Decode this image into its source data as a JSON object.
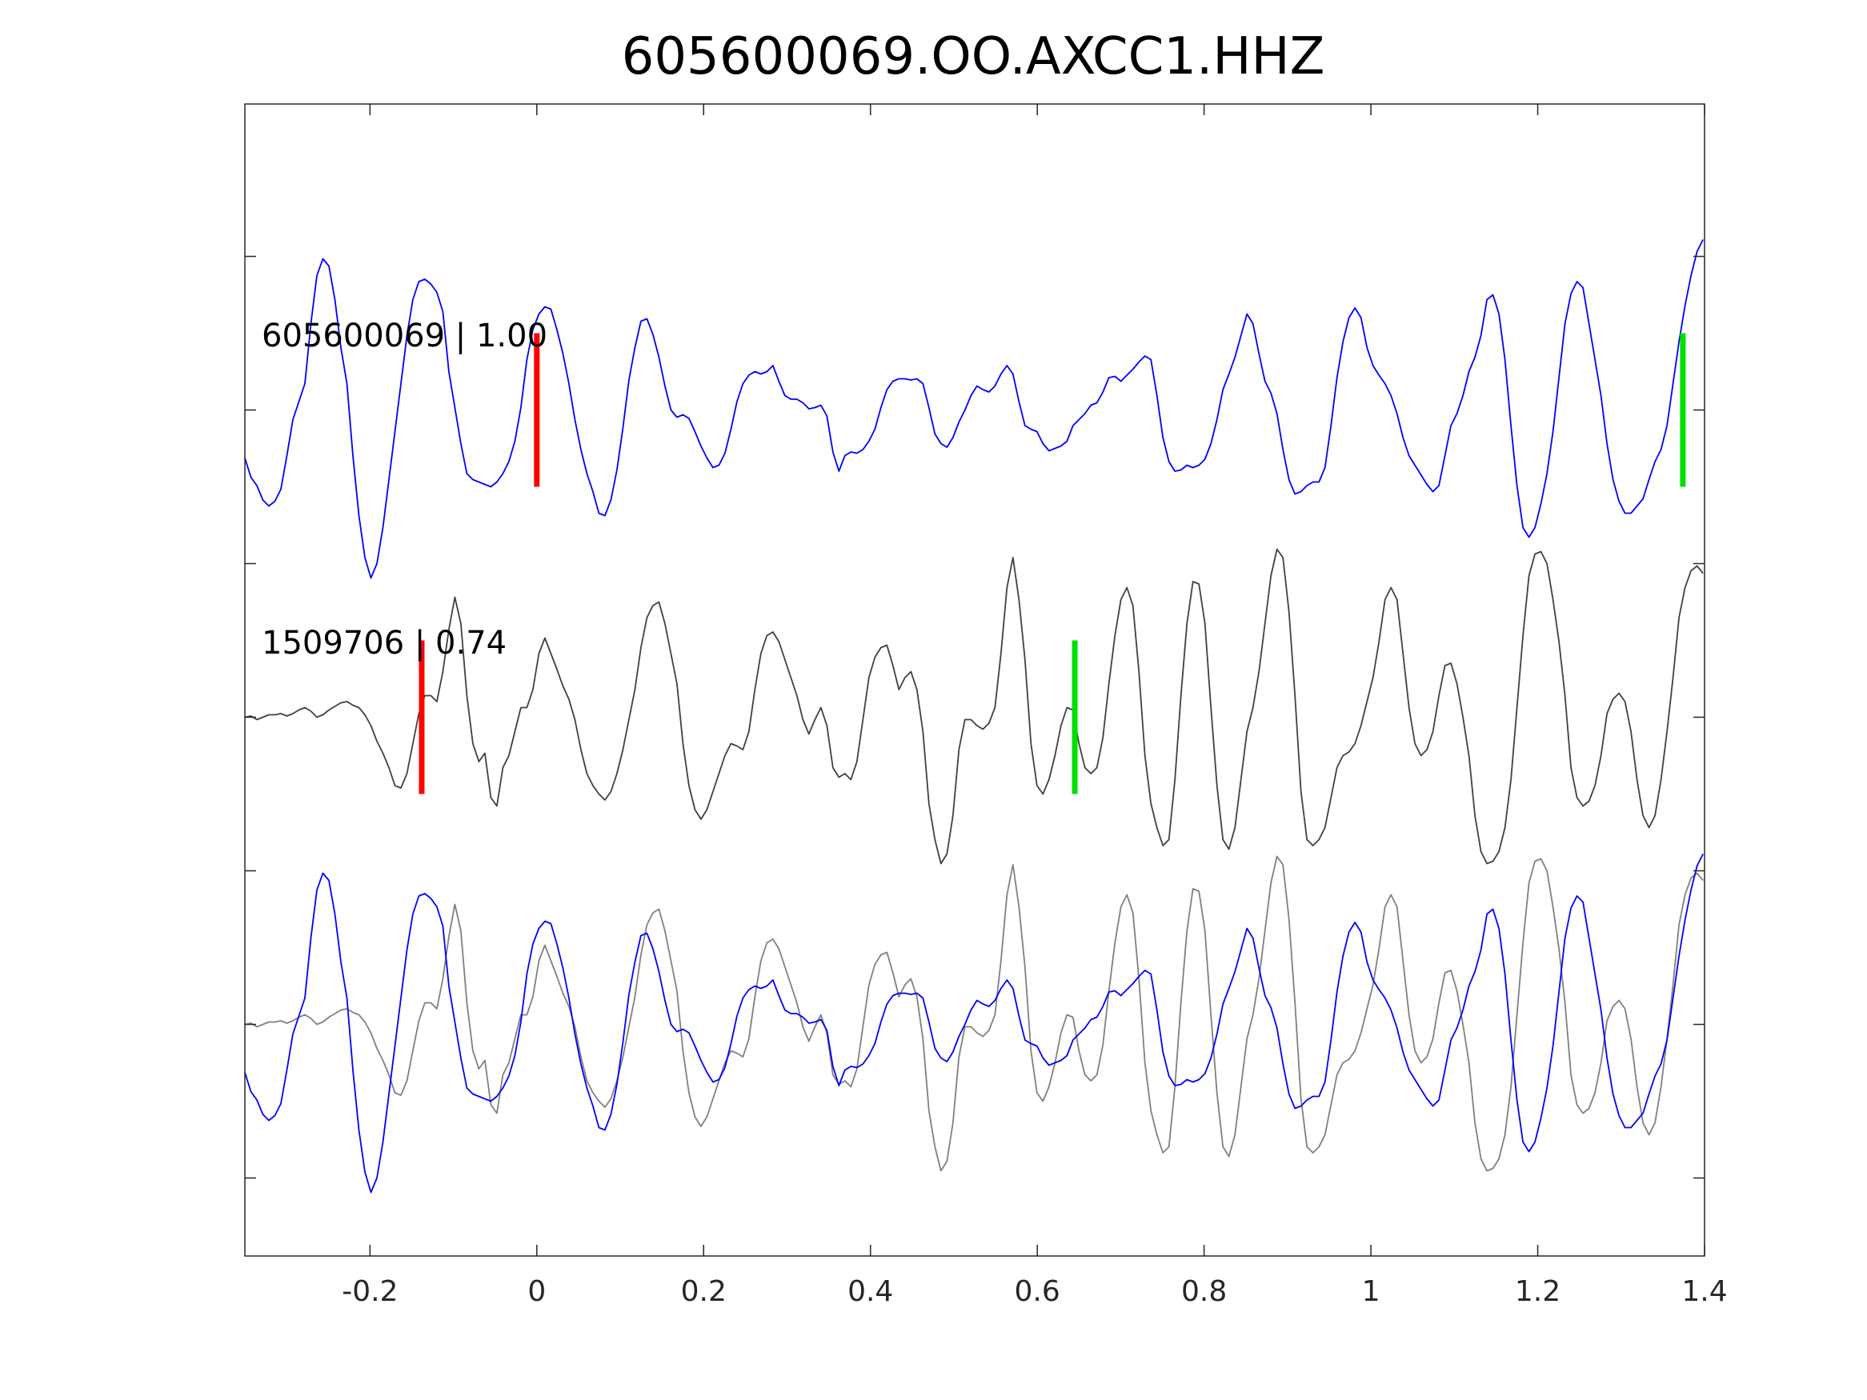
{
  "chart_data": {
    "type": "line",
    "title": "605600069.OO.AXCC1.HHZ",
    "xlabel": "",
    "ylabel": "",
    "xlim": [
      -0.35,
      1.4
    ],
    "ylim": [
      -705,
      255
    ],
    "xticks": [
      -0.2,
      0,
      0.2,
      0.4,
      0.6,
      0.8,
      1,
      1.2,
      1.4
    ],
    "xtick_labels": [
      "-0.2",
      "0",
      "0.2",
      "0.4",
      "0.6",
      "0.8",
      "1",
      "1.2",
      "1.4"
    ],
    "yticks": [
      128,
      0,
      -128,
      -256,
      -384,
      -512,
      -640
    ],
    "grid": false,
    "colors": {
      "blue": "#0000ff",
      "dark_gray": "#404040",
      "light_gray": "#808080",
      "red": "#ff0000",
      "green": "#00e000",
      "axis": "#262626"
    },
    "sampling": {
      "x_start": -0.35,
      "dt": 0.007194
    },
    "waveforms": {
      "605600069": [
        -40,
        -56,
        -63,
        -75,
        -80,
        -76,
        -66,
        -38,
        -8,
        7,
        22,
        72,
        112,
        126,
        120,
        92,
        52,
        22,
        -38,
        -88,
        -123,
        -140,
        -128,
        -98,
        -58,
        -18,
        22,
        62,
        92,
        107,
        109,
        105,
        98,
        82,
        32,
        2,
        -28,
        -53,
        -58,
        -60,
        -62,
        -64,
        -60,
        -53,
        -43,
        -26,
        2,
        42,
        67,
        80,
        86,
        84,
        67,
        47,
        22,
        -8,
        -33,
        -53,
        -68,
        -86,
        -88,
        -75,
        -50,
        -15,
        25,
        52,
        74,
        76,
        63,
        44,
        20,
        0,
        -6,
        -4,
        -7,
        -18,
        -30,
        -40,
        -48,
        -46,
        -36,
        -16,
        7,
        22,
        29,
        32,
        30,
        32,
        37,
        24,
        12,
        9,
        9,
        6,
        1,
        2,
        4,
        -5,
        -35,
        -51,
        -38,
        -35,
        -36,
        -33,
        -26,
        -16,
        2,
        17,
        24,
        26,
        26,
        25,
        26,
        22,
        2,
        -20,
        -28,
        -31,
        -23,
        -10,
        0,
        12,
        20,
        17,
        15,
        20,
        30,
        37,
        30,
        7,
        -13,
        -16,
        -18,
        -28,
        -34,
        -32,
        -30,
        -26,
        -13,
        -8,
        -3,
        4,
        6,
        15,
        27,
        28,
        24,
        29,
        34,
        40,
        45,
        42,
        12,
        -23,
        -43,
        -51,
        -50,
        -46,
        -48,
        -46,
        -41,
        -28,
        -8,
        17,
        30,
        44,
        62,
        80,
        72,
        47,
        24,
        14,
        -3,
        -33,
        -58,
        -70,
        -68,
        -63,
        -60,
        -60,
        -48,
        -13,
        27,
        57,
        77,
        85,
        77,
        52,
        37,
        29,
        22,
        12,
        -3,
        -23,
        -38,
        -46,
        -54,
        -62,
        -68,
        -63,
        -38,
        -13,
        -3,
        12,
        32,
        44,
        62,
        92,
        96,
        80,
        42,
        -13,
        -63,
        -98,
        -106,
        -98,
        -78,
        -53,
        -18,
        27,
        72,
        97,
        107,
        102,
        72,
        42,
        12,
        -28,
        -58,
        -76,
        -86,
        -86,
        -80,
        -74,
        -58,
        -43,
        -33,
        -13,
        22,
        57,
        87,
        112,
        132,
        142
      ],
      "1509706": [
        0,
        1,
        -2,
        0,
        2,
        2,
        3,
        1,
        3,
        6,
        8,
        5,
        0,
        2,
        6,
        9,
        12,
        13,
        10,
        8,
        2,
        -7,
        -20,
        -30,
        -42,
        -57,
        -59,
        -47,
        -22,
        3,
        18,
        18,
        13,
        38,
        73,
        100,
        78,
        18,
        -22,
        -37,
        -30,
        -67,
        -74,
        -42,
        -32,
        -12,
        8,
        8,
        23,
        53,
        66,
        53,
        40,
        26,
        15,
        -2,
        -27,
        -47,
        -57,
        -64,
        -69,
        -62,
        -47,
        -27,
        -2,
        23,
        58,
        83,
        93,
        96,
        78,
        53,
        28,
        -22,
        -57,
        -77,
        -85,
        -77,
        -62,
        -47,
        -32,
        -22,
        -24,
        -27,
        -12,
        23,
        53,
        68,
        71,
        63,
        48,
        33,
        18,
        -2,
        -14,
        -2,
        8,
        -7,
        -42,
        -50,
        -47,
        -52,
        -37,
        -2,
        33,
        50,
        58,
        60,
        43,
        23,
        33,
        38,
        23,
        -12,
        -72,
        -102,
        -122,
        -114,
        -82,
        -27,
        -2,
        -2,
        -7,
        -10,
        -5,
        8,
        53,
        108,
        133,
        98,
        48,
        -22,
        -57,
        -64,
        -52,
        -32,
        -7,
        8,
        6,
        -22,
        -42,
        -47,
        -42,
        -17,
        28,
        68,
        98,
        108,
        93,
        38,
        -32,
        -72,
        -92,
        -107,
        -102,
        -52,
        18,
        78,
        113,
        111,
        78,
        8,
        -57,
        -102,
        -110,
        -92,
        -52,
        -12,
        8,
        38,
        78,
        118,
        140,
        133,
        88,
        18,
        -62,
        -102,
        -107,
        -102,
        -92,
        -67,
        -42,
        -32,
        -29,
        -22,
        -7,
        13,
        33,
        63,
        98,
        108,
        98,
        53,
        8,
        -22,
        -32,
        -27,
        -12,
        18,
        43,
        45,
        28,
        0,
        -32,
        -82,
        -112,
        -122,
        -120,
        -112,
        -92,
        -52,
        8,
        68,
        118,
        136,
        138,
        128,
        98,
        63,
        18,
        -42,
        -67,
        -74,
        -70,
        -57,
        -32,
        3,
        15,
        20,
        13,
        -12,
        -52,
        -82,
        -92,
        -82,
        -52,
        -12,
        33,
        83,
        108,
        122,
        126,
        120
      ]
    },
    "series": [
      {
        "name": "605600069",
        "waveform": "605600069",
        "offset": 0,
        "color": "#0000ff",
        "label": "605600069 | 1.00"
      },
      {
        "name": "1509706",
        "waveform": "1509706",
        "offset": -256,
        "color": "#404040",
        "label": "1509706 | 0.74"
      },
      {
        "name": "605600069 overlay",
        "waveform": "605600069",
        "offset": -512,
        "color": "#0000ff"
      },
      {
        "name": "1509706 overlay",
        "waveform": "1509706",
        "offset": -512,
        "color": "#808080"
      }
    ],
    "markers": [
      {
        "trace": "605600069",
        "x": 0,
        "offset": 0,
        "half_height": 64,
        "color": "#ff0000"
      },
      {
        "trace": "605600069",
        "x": 1.374,
        "offset": 0,
        "half_height": 64,
        "color": "#00e000"
      },
      {
        "trace": "1509706",
        "x": -0.138,
        "offset": -256,
        "half_height": 64,
        "color": "#ff0000"
      },
      {
        "trace": "1509706",
        "x": 0.645,
        "offset": -256,
        "half_height": 64,
        "color": "#00e000"
      }
    ]
  }
}
